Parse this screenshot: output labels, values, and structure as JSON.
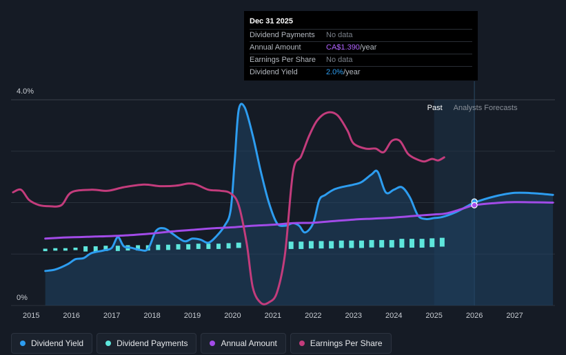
{
  "tooltip": {
    "date": "Dec 31 2025",
    "rows": [
      {
        "label": "Dividend Payments",
        "value": "No data",
        "unit": ""
      },
      {
        "label": "Annual Amount",
        "value": "CA$1.390",
        "unit": "/year"
      },
      {
        "label": "Earnings Per Share",
        "value": "No data",
        "unit": ""
      },
      {
        "label": "Dividend Yield",
        "value": "2.0%",
        "unit": "/year"
      }
    ]
  },
  "regions": {
    "past": "Past",
    "forecast": "Analysts Forecasts"
  },
  "legend": [
    {
      "label": "Dividend Yield",
      "color": "#2d9df0"
    },
    {
      "label": "Dividend Payments",
      "color": "#5ee6dc"
    },
    {
      "label": "Annual Amount",
      "color": "#a24be8"
    },
    {
      "label": "Earnings Per Share",
      "color": "#c33c7c"
    }
  ],
  "chart_data": {
    "type": "line",
    "ylim": [
      0,
      4.0
    ],
    "y_ticks": [
      "0%",
      "4.0%"
    ],
    "x_range": [
      2014.5,
      2028.0
    ],
    "x_ticks": [
      "2015",
      "2016",
      "2017",
      "2018",
      "2019",
      "2020",
      "2021",
      "2022",
      "2023",
      "2024",
      "2025",
      "2026",
      "2027"
    ],
    "forecast_start": 2025.0,
    "now": 2026.0,
    "colors": {
      "yield": "#2d9df0",
      "payments": "#5ee6dc",
      "annual": "#a24be8",
      "eps": "#c33c7c"
    },
    "series": [
      {
        "name": "Dividend Yield",
        "key": "yield",
        "points": [
          [
            2015.35,
            0.67
          ],
          [
            2015.6,
            0.7
          ],
          [
            2015.9,
            0.8
          ],
          [
            2016.1,
            0.9
          ],
          [
            2016.3,
            0.92
          ],
          [
            2016.5,
            1.02
          ],
          [
            2016.8,
            1.07
          ],
          [
            2017.0,
            1.12
          ],
          [
            2017.15,
            1.33
          ],
          [
            2017.3,
            1.15
          ],
          [
            2017.5,
            1.12
          ],
          [
            2017.7,
            1.08
          ],
          [
            2017.9,
            1.1
          ],
          [
            2018.1,
            1.45
          ],
          [
            2018.3,
            1.5
          ],
          [
            2018.5,
            1.4
          ],
          [
            2018.8,
            1.25
          ],
          [
            2019.0,
            1.3
          ],
          [
            2019.2,
            1.28
          ],
          [
            2019.4,
            1.22
          ],
          [
            2019.6,
            1.35
          ],
          [
            2019.8,
            1.55
          ],
          [
            2019.95,
            1.85
          ],
          [
            2020.05,
            2.8
          ],
          [
            2020.15,
            3.8
          ],
          [
            2020.3,
            3.85
          ],
          [
            2020.5,
            3.3
          ],
          [
            2020.7,
            2.6
          ],
          [
            2020.9,
            2.0
          ],
          [
            2021.1,
            1.6
          ],
          [
            2021.3,
            1.55
          ],
          [
            2021.5,
            1.6
          ],
          [
            2021.65,
            1.55
          ],
          [
            2021.8,
            1.42
          ],
          [
            2022.0,
            1.6
          ],
          [
            2022.15,
            2.05
          ],
          [
            2022.3,
            2.15
          ],
          [
            2022.5,
            2.25
          ],
          [
            2022.7,
            2.3
          ],
          [
            2023.0,
            2.35
          ],
          [
            2023.2,
            2.4
          ],
          [
            2023.45,
            2.55
          ],
          [
            2023.6,
            2.6
          ],
          [
            2023.8,
            2.2
          ],
          [
            2024.0,
            2.25
          ],
          [
            2024.2,
            2.3
          ],
          [
            2024.4,
            2.1
          ],
          [
            2024.6,
            1.75
          ],
          [
            2024.8,
            1.68
          ],
          [
            2025.0,
            1.7
          ],
          [
            2025.2,
            1.72
          ],
          [
            2025.5,
            1.8
          ],
          [
            2025.8,
            1.92
          ],
          [
            2026.0,
            2.0
          ],
          [
            2026.5,
            2.12
          ],
          [
            2027.0,
            2.19
          ],
          [
            2027.5,
            2.18
          ],
          [
            2027.95,
            2.15
          ]
        ]
      },
      {
        "name": "Annual Amount",
        "key": "annual",
        "points": [
          [
            2015.35,
            1.3
          ],
          [
            2015.8,
            1.32
          ],
          [
            2016.2,
            1.33
          ],
          [
            2016.6,
            1.34
          ],
          [
            2017.0,
            1.35
          ],
          [
            2017.5,
            1.37
          ],
          [
            2018.0,
            1.4
          ],
          [
            2018.5,
            1.44
          ],
          [
            2019.0,
            1.47
          ],
          [
            2019.5,
            1.5
          ],
          [
            2020.0,
            1.52
          ],
          [
            2020.5,
            1.55
          ],
          [
            2021.0,
            1.57
          ],
          [
            2021.5,
            1.6
          ],
          [
            2022.0,
            1.61
          ],
          [
            2022.5,
            1.64
          ],
          [
            2023.0,
            1.67
          ],
          [
            2023.5,
            1.69
          ],
          [
            2024.0,
            1.71
          ],
          [
            2024.5,
            1.74
          ],
          [
            2025.0,
            1.77
          ],
          [
            2025.3,
            1.79
          ],
          [
            2025.7,
            1.88
          ],
          [
            2026.0,
            1.95
          ],
          [
            2026.5,
            1.99
          ],
          [
            2027.0,
            2.01
          ],
          [
            2027.95,
            2.0
          ]
        ]
      },
      {
        "name": "Earnings Per Share",
        "key": "eps",
        "points": [
          [
            2014.55,
            2.2
          ],
          [
            2014.75,
            2.25
          ],
          [
            2014.95,
            2.05
          ],
          [
            2015.2,
            1.95
          ],
          [
            2015.45,
            1.93
          ],
          [
            2015.75,
            1.95
          ],
          [
            2016.0,
            2.2
          ],
          [
            2016.5,
            2.25
          ],
          [
            2016.9,
            2.23
          ],
          [
            2017.3,
            2.3
          ],
          [
            2017.8,
            2.35
          ],
          [
            2018.2,
            2.32
          ],
          [
            2018.6,
            2.33
          ],
          [
            2018.9,
            2.37
          ],
          [
            2019.1,
            2.35
          ],
          [
            2019.4,
            2.25
          ],
          [
            2019.7,
            2.23
          ],
          [
            2019.95,
            2.18
          ],
          [
            2020.15,
            1.95
          ],
          [
            2020.35,
            1.2
          ],
          [
            2020.5,
            0.35
          ],
          [
            2020.7,
            0.05
          ],
          [
            2020.9,
            0.06
          ],
          [
            2021.1,
            0.25
          ],
          [
            2021.3,
            1.0
          ],
          [
            2021.5,
            2.6
          ],
          [
            2021.7,
            2.9
          ],
          [
            2021.9,
            3.3
          ],
          [
            2022.1,
            3.6
          ],
          [
            2022.35,
            3.75
          ],
          [
            2022.6,
            3.7
          ],
          [
            2022.85,
            3.4
          ],
          [
            2023.0,
            3.15
          ],
          [
            2023.3,
            3.05
          ],
          [
            2023.55,
            3.05
          ],
          [
            2023.75,
            2.98
          ],
          [
            2023.95,
            3.2
          ],
          [
            2024.15,
            3.2
          ],
          [
            2024.35,
            2.95
          ],
          [
            2024.55,
            2.85
          ],
          [
            2024.75,
            2.8
          ],
          [
            2024.95,
            2.85
          ],
          [
            2025.1,
            2.82
          ],
          [
            2025.25,
            2.88
          ]
        ]
      }
    ],
    "payments": {
      "name": "Dividend Payments",
      "x": [
        2015.35,
        2015.6,
        2015.85,
        2016.1,
        2016.35,
        2016.6,
        2016.85,
        2017.15,
        2017.4,
        2017.65,
        2017.9,
        2018.15,
        2018.4,
        2018.65,
        2018.9,
        2019.15,
        2019.4,
        2019.65,
        2019.9,
        2020.15,
        2021.45,
        2021.7,
        2021.95,
        2022.2,
        2022.45,
        2022.7,
        2022.95,
        2023.2,
        2023.45,
        2023.7,
        2023.95,
        2024.2,
        2024.45,
        2024.7,
        2024.95,
        2025.2
      ],
      "values": [
        1.08,
        1.09,
        1.09,
        1.1,
        1.1,
        1.1,
        1.11,
        1.11,
        1.12,
        1.12,
        1.12,
        1.13,
        1.13,
        1.14,
        1.14,
        1.15,
        1.15,
        1.15,
        1.16,
        1.17,
        1.17,
        1.17,
        1.18,
        1.18,
        1.18,
        1.19,
        1.19,
        1.19,
        1.2,
        1.2,
        1.2,
        1.21,
        1.21,
        1.21,
        1.22,
        1.23
      ]
    },
    "markers": [
      {
        "key": "yield",
        "x": 2026.0,
        "y": 2.02
      },
      {
        "key": "annual",
        "x": 2026.0,
        "y": 1.95
      }
    ]
  }
}
